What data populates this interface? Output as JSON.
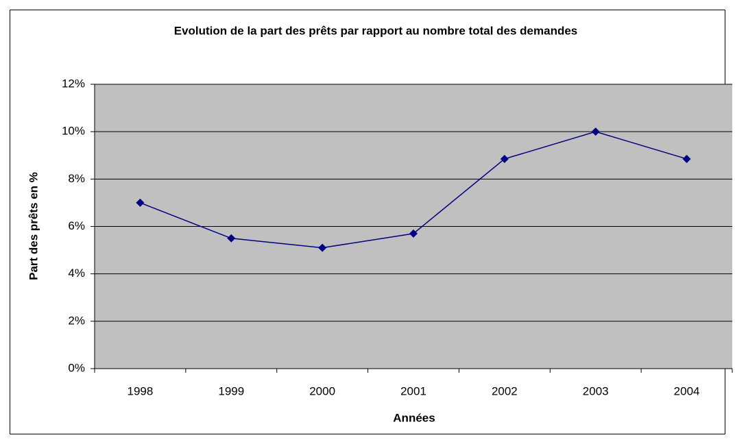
{
  "chart_data": {
    "type": "line",
    "title": "Evolution de la part des prêts par rapport au nombre total des demandes",
    "x_label": "Années",
    "y_label": "Part des prêts en %",
    "categories": [
      "1998",
      "1999",
      "2000",
      "2001",
      "2002",
      "2003",
      "2004"
    ],
    "values": [
      7.0,
      5.5,
      5.1,
      5.7,
      8.85,
      10.0,
      8.85
    ],
    "color": "#000080",
    "ylim": [
      0,
      12
    ],
    "yticks": [
      {
        "value": 0,
        "label": "0%"
      },
      {
        "value": 2,
        "label": "2%"
      },
      {
        "value": 4,
        "label": "4%"
      },
      {
        "value": 6,
        "label": "6%"
      },
      {
        "value": 8,
        "label": "8%"
      },
      {
        "value": 10,
        "label": "10%"
      },
      {
        "value": 12,
        "label": "12%"
      }
    ],
    "grid": true
  }
}
